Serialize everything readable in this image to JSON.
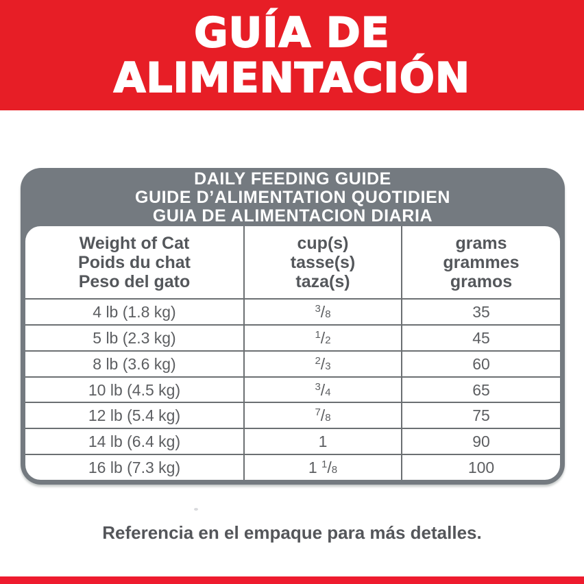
{
  "banner": {
    "line1": "GUÍA DE",
    "line2": "ALIMENTACIÓN",
    "bg_color": "#E71E26",
    "text_color": "#FFFFFF"
  },
  "guide_card": {
    "header_lines": [
      "DAILY FEEDING GUIDE",
      "GUIDE D’ALIMENTATION QUOTIDIEN",
      "GUIA DE ALIMENTACION DIARIA"
    ],
    "header_bg": "#747A80",
    "grid_line_color": "#6B6F72",
    "columns": [
      {
        "lines": [
          "Weight of Cat",
          "Poids du chat",
          "Peso del gato"
        ]
      },
      {
        "lines": [
          "cup(s)",
          "tasse(s)",
          "taza(s)"
        ]
      },
      {
        "lines": [
          "grams",
          "grammes",
          "gramos"
        ]
      }
    ],
    "rows": [
      {
        "weight": "4 lb (1.8 kg)",
        "cups": "3/8",
        "grams": "35"
      },
      {
        "weight": "5 lb (2.3 kg)",
        "cups": "1/2",
        "grams": "45"
      },
      {
        "weight": "8 lb (3.6 kg)",
        "cups": "2/3",
        "grams": "60"
      },
      {
        "weight": "10 lb (4.5 kg)",
        "cups": "3/4",
        "grams": "65"
      },
      {
        "weight": "12 lb (5.4 kg)",
        "cups": "7/8",
        "grams": "75"
      },
      {
        "weight": "14 lb (6.4 kg)",
        "cups": "1",
        "grams": "90"
      },
      {
        "weight": "16 lb (7.3 kg)",
        "cups": "1 1/8",
        "grams": "100"
      }
    ]
  },
  "footer": {
    "note": "Referencia en el empaque para más detalles."
  }
}
